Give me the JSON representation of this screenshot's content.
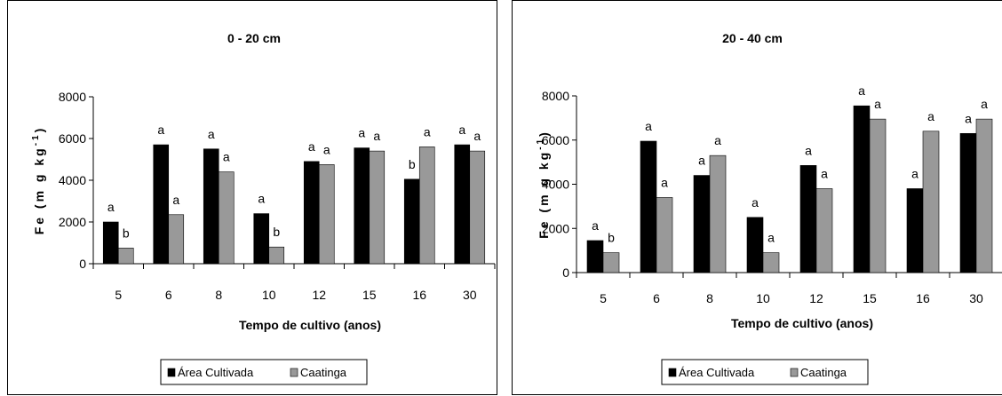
{
  "chart_data": [
    {
      "type": "bar",
      "title": "0 - 20 cm",
      "xlabel": "Tempo de cultivo (anos)",
      "ylabel": "Fe (mg kg-1)",
      "ylabel_main": "Fe (m g kg",
      "ylabel_sup": "-1",
      "ylabel_close": ")",
      "ylim": [
        0,
        8000
      ],
      "yticks": [
        "0",
        "2000",
        "4000",
        "6000",
        "8000"
      ],
      "categories": [
        "5",
        "6",
        "8",
        "10",
        "12",
        "15",
        "16",
        "30"
      ],
      "series": [
        {
          "name": "Área Cultivada",
          "color": "#000000",
          "values": [
            2000,
            5700,
            5500,
            2400,
            4900,
            5550,
            4050,
            5700
          ],
          "letters": [
            "a",
            "a",
            "a",
            "a",
            "a",
            "a",
            "b",
            "a"
          ]
        },
        {
          "name": "Caatinga",
          "color": "#999999",
          "values": [
            750,
            2350,
            4400,
            800,
            4750,
            5400,
            5600,
            5400
          ],
          "letters": [
            "b",
            "a",
            "a",
            "b",
            "a",
            "a",
            "a",
            "a"
          ]
        }
      ],
      "grid": false,
      "legend": "bottom"
    },
    {
      "type": "bar",
      "title": "20 - 40 cm",
      "xlabel": "Tempo de cultivo (anos)",
      "ylabel": "Fe (mg kg-1)",
      "ylabel_main": "Fe (m g kg",
      "ylabel_sup": "-1",
      "ylabel_close": ")",
      "ylim": [
        0,
        8000
      ],
      "yticks": [
        "0",
        "2000",
        "4000",
        "6000",
        "8000"
      ],
      "categories": [
        "5",
        "6",
        "8",
        "10",
        "12",
        "15",
        "16",
        "30"
      ],
      "series": [
        {
          "name": "Área Cultivada",
          "color": "#000000",
          "values": [
            1450,
            5950,
            4400,
            2500,
            4850,
            7550,
            3800,
            6300
          ],
          "letters": [
            "a",
            "a",
            "a",
            "a",
            "a",
            "a",
            "a",
            "a"
          ]
        },
        {
          "name": "Caatinga",
          "color": "#999999",
          "values": [
            900,
            3400,
            5300,
            900,
            3800,
            6950,
            6400,
            6950
          ],
          "letters": [
            "b",
            "a",
            "a",
            "a",
            "a",
            "a",
            "a",
            "a"
          ]
        }
      ],
      "grid": false,
      "legend": "bottom"
    }
  ]
}
